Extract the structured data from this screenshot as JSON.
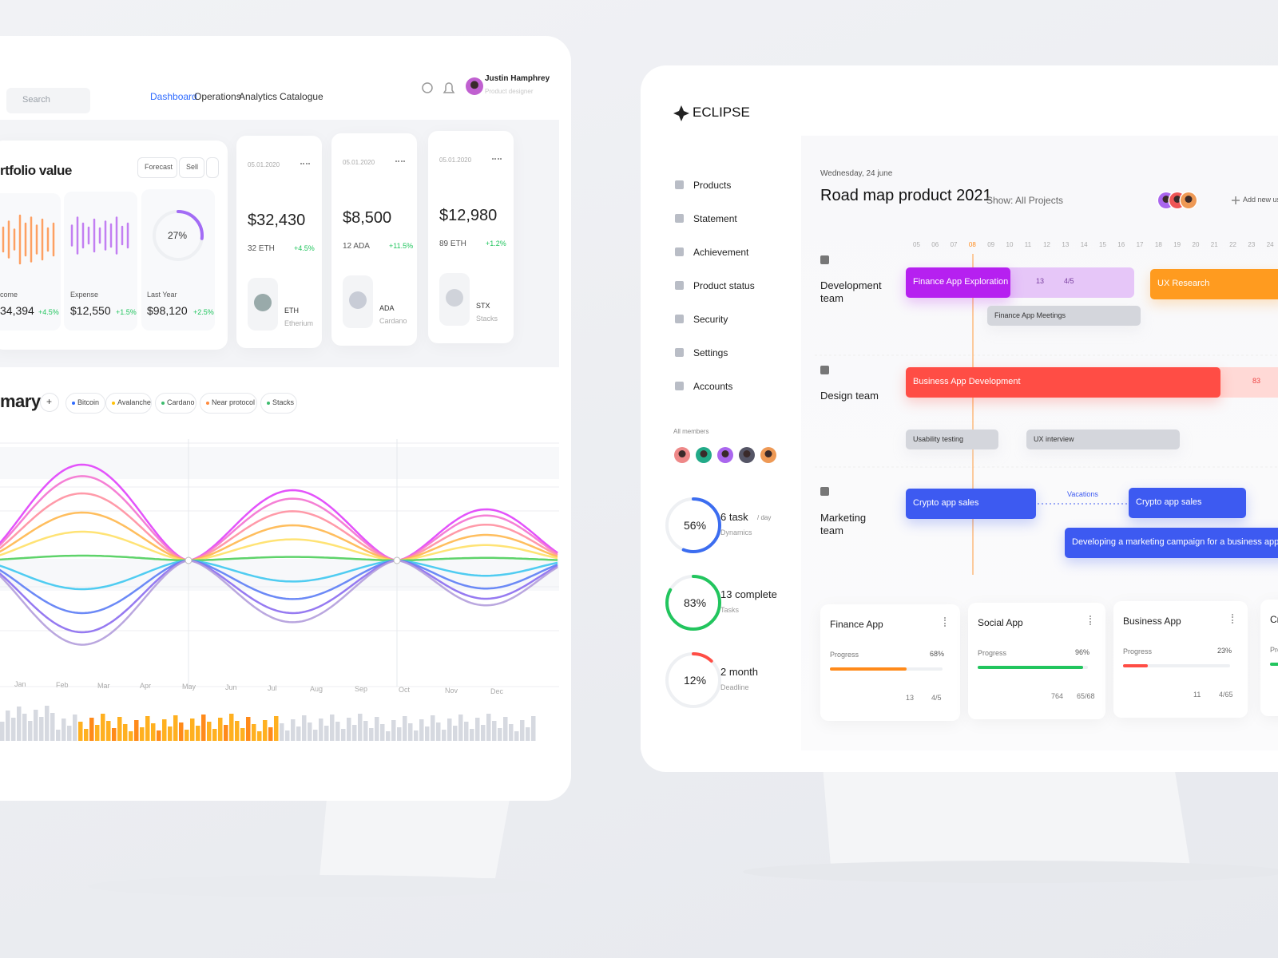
{
  "left_screen": {
    "search": "Search",
    "nav": [
      "Dashboard",
      "Operations",
      "Analytics",
      "Catalogue"
    ],
    "user": {
      "name": "Justin Hamphrey",
      "role": "Product designer"
    },
    "portfolio": {
      "title": "rtfolio value",
      "buttons": [
        "Forecast",
        "Sell"
      ],
      "cards": [
        {
          "label": "come",
          "value": "34,394",
          "change": "+4.5%"
        },
        {
          "label": "Expense",
          "value": "$12,550",
          "change": "+1.5%"
        },
        {
          "label": "Last Year",
          "value": "$98,120",
          "change": "+2.5%",
          "ring": {
            "value": 27,
            "label": "27%"
          }
        }
      ]
    },
    "coins": [
      {
        "date": "05.01.2020",
        "amount": "$32,430",
        "holding": "32 ETH",
        "change": "+4.5%",
        "ticker": "ETH",
        "name": "Etherium"
      },
      {
        "date": "05.01.2020",
        "amount": "$8,500",
        "holding": "12 ADA",
        "change": "+11.5%",
        "ticker": "ADA",
        "name": "Cardano"
      },
      {
        "date": "05.01.2020",
        "amount": "$12,980",
        "holding": "89 ETH",
        "change": "+1.2%",
        "ticker": "STX",
        "name": "Stacks"
      }
    ],
    "summary": {
      "title": "mary",
      "add": "+",
      "chips": [
        "Bitcoin",
        "Avalanche",
        "Cardano",
        "Near protocol",
        "Stacks"
      ]
    },
    "months": [
      "Jan",
      "Feb",
      "Mar",
      "Apr",
      "May",
      "Jun",
      "Jul",
      "Aug",
      "Sep",
      "Oct",
      "Nov",
      "Dec"
    ]
  },
  "right_screen": {
    "logo": "ECLIPSE",
    "menu": [
      "Products",
      "Statement",
      "Achievement",
      "Product status",
      "Security",
      "Settings",
      "Accounts"
    ],
    "members_label": "All members",
    "stats": [
      {
        "ring": {
          "value": 56,
          "label": "56%"
        },
        "title": "6 task",
        "unit": "/ day",
        "caption": "Dynamics"
      },
      {
        "ring": {
          "value": 83,
          "label": "83%"
        },
        "title": "13 complete",
        "caption": "Tasks"
      },
      {
        "ring": {
          "value": 12,
          "label": "12%"
        },
        "title": "2 month",
        "caption": "Deadline"
      }
    ],
    "date": "Wednesday, 24 june",
    "title": "Road map product 2021",
    "filter": "Show: All Projects",
    "add": "Add new us",
    "days": [
      "05",
      "06",
      "07",
      "08",
      "09",
      "10",
      "11",
      "12",
      "13",
      "14",
      "15",
      "16",
      "17",
      "18",
      "19",
      "20",
      "21",
      "22",
      "23",
      "24"
    ],
    "teams": [
      "Development team",
      "Design team",
      "Marketing team"
    ],
    "tasks": [
      {
        "label": "Finance App Exploration",
        "attachments": "13",
        "checks": "4/5"
      },
      {
        "label": "UX Research"
      },
      {
        "label": "Finance App Meetings"
      },
      {
        "label": "Business App Development",
        "attachments": "83"
      },
      {
        "label": "Usability testing"
      },
      {
        "label": "UX interview"
      },
      {
        "label": "Crypto app sales"
      },
      {
        "label": "Crypto app sales"
      },
      {
        "label": "Developing a marketing campaign for a business application"
      }
    ],
    "vacations": "Vacations",
    "projects": [
      {
        "name": "Finance App",
        "progress_label": "Progress",
        "progress": {
          "value": 68,
          "label": "68%"
        },
        "attachments": "13",
        "checks": "4/5"
      },
      {
        "name": "Social App",
        "progress_label": "Progress",
        "progress": {
          "value": 96,
          "label": "96%"
        },
        "attachments": "764",
        "checks": "65/68"
      },
      {
        "name": "Business App",
        "progress_label": "Progress",
        "progress": {
          "value": 23,
          "label": "23%"
        },
        "attachments": "11",
        "checks": "4/65"
      },
      {
        "name": "Crypt",
        "progress_label": "Progra"
      }
    ]
  }
}
